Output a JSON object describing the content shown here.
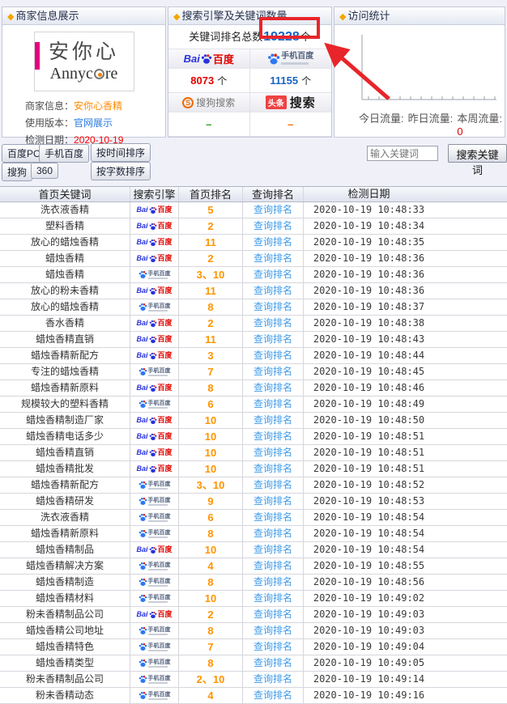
{
  "panels": {
    "merchant": {
      "title": "商家信息展示",
      "logo": {
        "cn": "安你心",
        "en_pre": "Annyc",
        "en_post": "re"
      },
      "fields": [
        {
          "label": "商家信息：",
          "value": "安你心香精",
          "color": "#ff8a00"
        },
        {
          "label": "使用版本：",
          "value": "官网展示",
          "color": "#2a7ae2"
        },
        {
          "label": "检测日期：",
          "value": "2020-10-19",
          "color": "#ff0000"
        }
      ]
    },
    "engines": {
      "title": "搜索引擎及关键词数量",
      "total_label": "关键词排名总数",
      "total_value": "19228",
      "total_unit": "个",
      "cells": [
        {
          "engine": "baidu",
          "value": "8073",
          "unit": "个",
          "value_color": "#e60000"
        },
        {
          "engine": "mobile",
          "value": "11155",
          "unit": "个",
          "value_color": "#1b63c0"
        },
        {
          "engine": "sogou",
          "value": "–",
          "unit": "",
          "value_color": "#2e9e1f"
        },
        {
          "engine": "toutiao",
          "value": "–",
          "unit": "",
          "value_color": "#ff6600"
        }
      ]
    },
    "stats": {
      "title": "访问统计",
      "items": [
        {
          "label": "今日流量:",
          "value": ""
        },
        {
          "label": "昨日流量:",
          "value": ""
        },
        {
          "label": "本周流量:",
          "value": "0"
        }
      ]
    }
  },
  "annotation_color": "#e8252a",
  "search": {
    "placeholder": "输入关键词",
    "button": "搜索关键词"
  },
  "filters": [
    "百度PC",
    "手机百度",
    "搜狗",
    "360"
  ],
  "sorts": [
    "按时间排序",
    "按字数排序"
  ],
  "logos": {
    "baidu": {
      "prefix": "Bai",
      "suffix": "百度"
    },
    "mobile": {
      "label": "手机百度"
    },
    "sogou": {
      "s": "S",
      "label": "搜狗搜索"
    },
    "toutiao": {
      "badge": "头条",
      "label": "搜索"
    }
  },
  "table": {
    "headers": [
      "首页关键词",
      "搜索引擎",
      "首页排名",
      "查询排名",
      "检测日期"
    ],
    "query_label": "查询排名",
    "rows": [
      {
        "kw": "洗衣液香精",
        "engine": "baidu",
        "rank": "5",
        "date": "2020-10-19 10:48:33"
      },
      {
        "kw": "塑料香精",
        "engine": "baidu",
        "rank": "2",
        "date": "2020-10-19 10:48:34"
      },
      {
        "kw": "放心的蜡烛香精",
        "engine": "baidu",
        "rank": "11",
        "date": "2020-10-19 10:48:35"
      },
      {
        "kw": "蜡烛香精",
        "engine": "baidu",
        "rank": "2",
        "date": "2020-10-19 10:48:36"
      },
      {
        "kw": "蜡烛香精",
        "engine": "mobile",
        "rank": "3、10",
        "date": "2020-10-19 10:48:36"
      },
      {
        "kw": "放心的粉未香精",
        "engine": "baidu",
        "rank": "11",
        "date": "2020-10-19 10:48:36"
      },
      {
        "kw": "放心的蜡烛香精",
        "engine": "mobile",
        "rank": "8",
        "date": "2020-10-19 10:48:37"
      },
      {
        "kw": "香水香精",
        "engine": "baidu",
        "rank": "2",
        "date": "2020-10-19 10:48:38"
      },
      {
        "kw": "蜡烛香精直销",
        "engine": "baidu",
        "rank": "11",
        "date": "2020-10-19 10:48:43"
      },
      {
        "kw": "蜡烛香精新配方",
        "engine": "baidu",
        "rank": "3",
        "date": "2020-10-19 10:48:44"
      },
      {
        "kw": "专注的蜡烛香精",
        "engine": "mobile",
        "rank": "7",
        "date": "2020-10-19 10:48:45"
      },
      {
        "kw": "蜡烛香精新原料",
        "engine": "baidu",
        "rank": "8",
        "date": "2020-10-19 10:48:46"
      },
      {
        "kw": "规模较大的塑料香精",
        "engine": "mobile",
        "rank": "6",
        "date": "2020-10-19 10:48:49"
      },
      {
        "kw": "蜡烛香精制造厂家",
        "engine": "baidu",
        "rank": "10",
        "date": "2020-10-19 10:48:50"
      },
      {
        "kw": "蜡烛香精电话多少",
        "engine": "baidu",
        "rank": "10",
        "date": "2020-10-19 10:48:51"
      },
      {
        "kw": "蜡烛香精直销",
        "engine": "baidu",
        "rank": "10",
        "date": "2020-10-19 10:48:51"
      },
      {
        "kw": "蜡烛香精批发",
        "engine": "baidu",
        "rank": "10",
        "date": "2020-10-19 10:48:51"
      },
      {
        "kw": "蜡烛香精新配方",
        "engine": "mobile",
        "rank": "3、10",
        "date": "2020-10-19 10:48:52"
      },
      {
        "kw": "蜡烛香精研发",
        "engine": "mobile",
        "rank": "9",
        "date": "2020-10-19 10:48:53"
      },
      {
        "kw": "洗衣液香精",
        "engine": "mobile",
        "rank": "6",
        "date": "2020-10-19 10:48:54"
      },
      {
        "kw": "蜡烛香精新原料",
        "engine": "mobile",
        "rank": "8",
        "date": "2020-10-19 10:48:54"
      },
      {
        "kw": "蜡烛香精制品",
        "engine": "baidu",
        "rank": "10",
        "date": "2020-10-19 10:48:54"
      },
      {
        "kw": "蜡烛香精解决方案",
        "engine": "mobile",
        "rank": "4",
        "date": "2020-10-19 10:48:55"
      },
      {
        "kw": "蜡烛香精制造",
        "engine": "mobile",
        "rank": "8",
        "date": "2020-10-19 10:48:56"
      },
      {
        "kw": "蜡烛香精材料",
        "engine": "mobile",
        "rank": "10",
        "date": "2020-10-19 10:49:02"
      },
      {
        "kw": "粉未香精制品公司",
        "engine": "baidu",
        "rank": "2",
        "date": "2020-10-19 10:49:03"
      },
      {
        "kw": "蜡烛香精公司地址",
        "engine": "mobile",
        "rank": "8",
        "date": "2020-10-19 10:49:03"
      },
      {
        "kw": "蜡烛香精特色",
        "engine": "mobile",
        "rank": "7",
        "date": "2020-10-19 10:49:04"
      },
      {
        "kw": "蜡烛香精类型",
        "engine": "mobile",
        "rank": "8",
        "date": "2020-10-19 10:49:05"
      },
      {
        "kw": "粉未香精制品公司",
        "engine": "mobile",
        "rank": "2、10",
        "date": "2020-10-19 10:49:14"
      },
      {
        "kw": "粉未香精动态",
        "engine": "mobile",
        "rank": "4",
        "date": "2020-10-19 10:49:16"
      }
    ]
  }
}
